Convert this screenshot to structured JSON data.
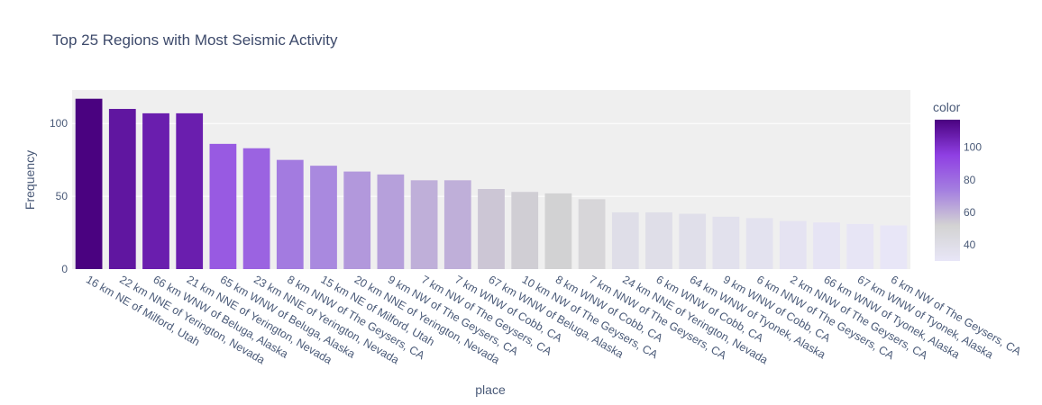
{
  "chart_data": {
    "type": "bar",
    "title": "Top 25 Regions with Most Seismic Activity",
    "xlabel": "place",
    "ylabel": "Frequency",
    "ylim": [
      0,
      123
    ],
    "yticks": [
      0,
      50,
      100
    ],
    "grid": true,
    "categories": [
      "16 km NE of Milford, Utah",
      "22 km NNE of Yerington, Nevada",
      "66 km WNW of Beluga, Alaska",
      "21 km NNE of Yerington, Nevada",
      "65 km WNW of Beluga, Alaska",
      "23 km NNE of Yerington, Nevada",
      "8 km NNW of The Geysers, CA",
      "15 km NE of Milford, Utah",
      "20 km NNE of Yerington, Nevada",
      "9 km NW of The Geysers, CA",
      "7 km NW of The Geysers, CA",
      "7 km WNW of Cobb, CA",
      "67 km WNW of Beluga, Alaska",
      "10 km NW of The Geysers, CA",
      "8 km WNW of Cobb, CA",
      "7 km NNW of The Geysers, CA",
      "24 km NNE of Yerington, Nevada",
      "6 km WNW of Cobb, CA",
      "64 km WNW of Tyonek, Alaska",
      "9 km WNW of Cobb, CA",
      "6 km NNW of The Geysers, CA",
      "2 km NNW of The Geysers, CA",
      "66 km WNW of Tyonek, Alaska",
      "67 km WNW of Tyonek, Alaska",
      "6 km NW of The Geysers, CA"
    ],
    "values": [
      117,
      110,
      107,
      107,
      86,
      83,
      75,
      71,
      67,
      65,
      61,
      61,
      55,
      53,
      52,
      48,
      39,
      39,
      38,
      36,
      35,
      33,
      32,
      31,
      30
    ],
    "colorbar": {
      "title": "color",
      "range": [
        30,
        117
      ],
      "ticks": [
        40,
        60,
        80,
        100
      ],
      "colorscale": [
        "#e8e6f7",
        "#d3d3d3",
        "#a47fe0",
        "#8f3fe3",
        "#4a0280"
      ]
    },
    "colors": {
      "plot_bg": "#efefef",
      "grid": "#ffffff"
    }
  }
}
